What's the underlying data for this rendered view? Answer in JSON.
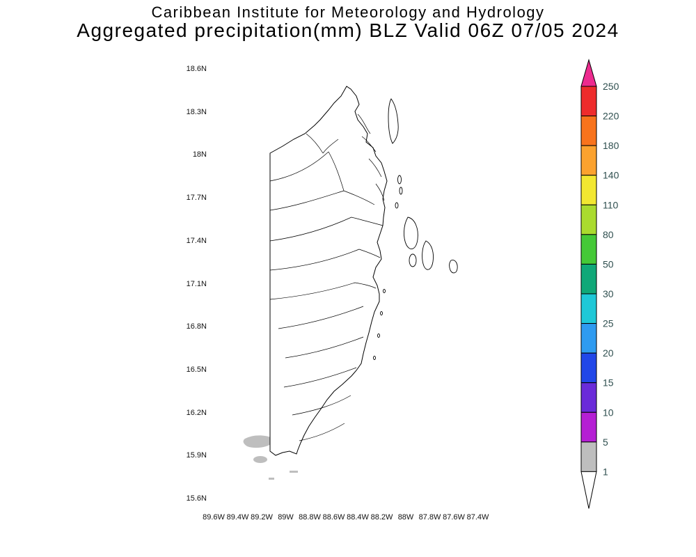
{
  "title": {
    "line1": "Caribbean Institute for Meteorology and Hydrology",
    "line2": "Aggregated precipitation(mm) BLZ Valid 06Z 07/05 2024"
  },
  "axes": {
    "lat_labels": [
      "18.6N",
      "18.3N",
      "18N",
      "17.7N",
      "17.4N",
      "17.1N",
      "16.8N",
      "16.5N",
      "16.2N",
      "15.9N",
      "15.6N"
    ],
    "lon_labels": [
      "89.6W",
      "89.4W",
      "89.2W",
      "89W",
      "88.8W",
      "88.6W",
      "88.4W",
      "88.2W",
      "88W",
      "87.8W",
      "87.6W",
      "87.4W"
    ]
  },
  "colorbar": {
    "tick_values": [
      "250",
      "220",
      "180",
      "140",
      "110",
      "80",
      "50",
      "30",
      "25",
      "20",
      "15",
      "10",
      "5",
      "1"
    ],
    "segment_colors_top_to_bottom": [
      "#EE2C2C",
      "#F8731C",
      "#FBA22E",
      "#F2E731",
      "#AADB2E",
      "#45C937",
      "#10A878",
      "#1FC8D7",
      "#2E9BF0",
      "#2147E8",
      "#6A2BD9",
      "#B51FD4",
      "#BEBEBE"
    ],
    "arrow_top_color": "#ED2B8F",
    "arrow_bottom_color": "#FFFFFF",
    "label_color": "#2F4F4F"
  },
  "map": {
    "region": "Belize coastline with watershed boundaries and offshore cayes",
    "outline_color": "#000000",
    "precip_patch_color": "#BEBEBE"
  }
}
